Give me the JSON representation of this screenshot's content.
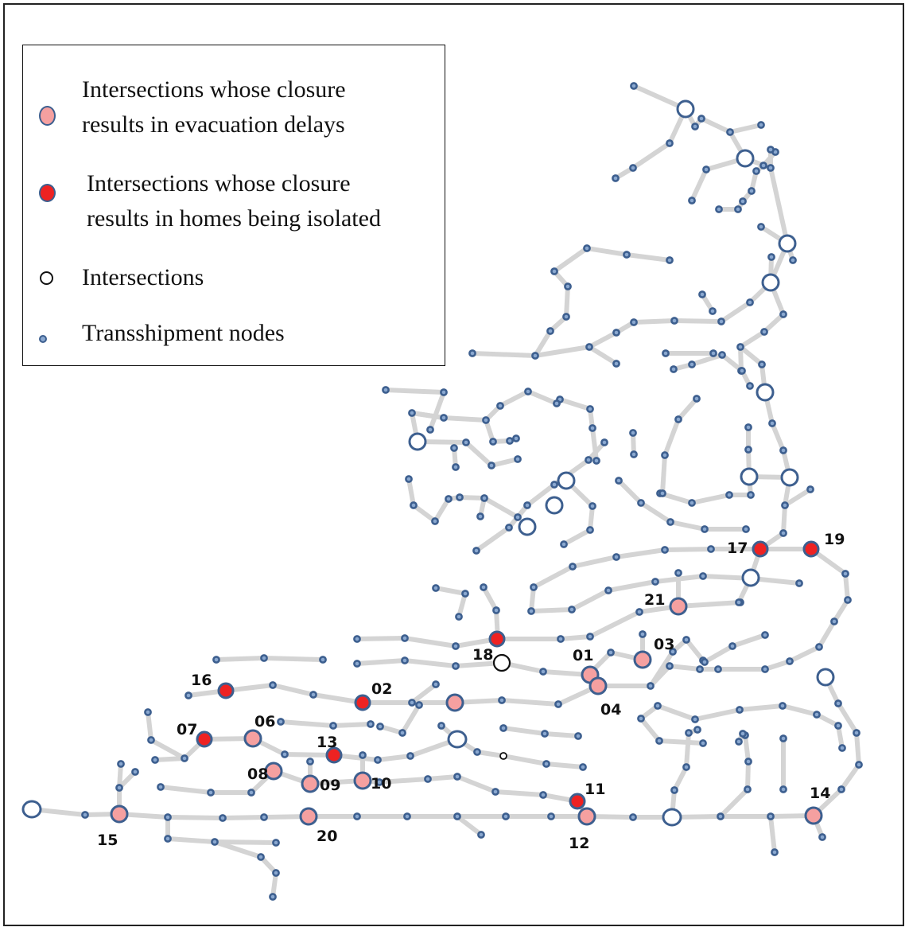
{
  "legend": {
    "items": [
      {
        "symbol": "pink-node",
        "text": "Intersections whose closure\nresults in evacuation delays"
      },
      {
        "symbol": "red-node",
        "text": "Intersections whose closure\nresults in homes being isolated"
      },
      {
        "symbol": "intersection-node",
        "text": "Intersections"
      },
      {
        "symbol": "transshipment-node",
        "text": "Transshipment nodes"
      }
    ]
  },
  "colors": {
    "edge": "#d4d4d4",
    "node_stroke": "#3d5f8f",
    "transshipment_fill": "#8aa8d0",
    "evacuation_delay_fill": "#f5a0a0",
    "isolation_fill": "#ee2222",
    "label": "#111111"
  },
  "labels": {
    "n01": "01",
    "n02": "02",
    "n03": "03",
    "n04": "04",
    "n06": "06",
    "n07": "07",
    "n08": "08",
    "n09": "09",
    "n10": "10",
    "n11": "11",
    "n12": "12",
    "n13": "13",
    "n14": "14",
    "n15": "15",
    "n16": "16",
    "n17": "17",
    "n18": "18",
    "n19": "19",
    "n20": "20",
    "n21": "21"
  }
}
